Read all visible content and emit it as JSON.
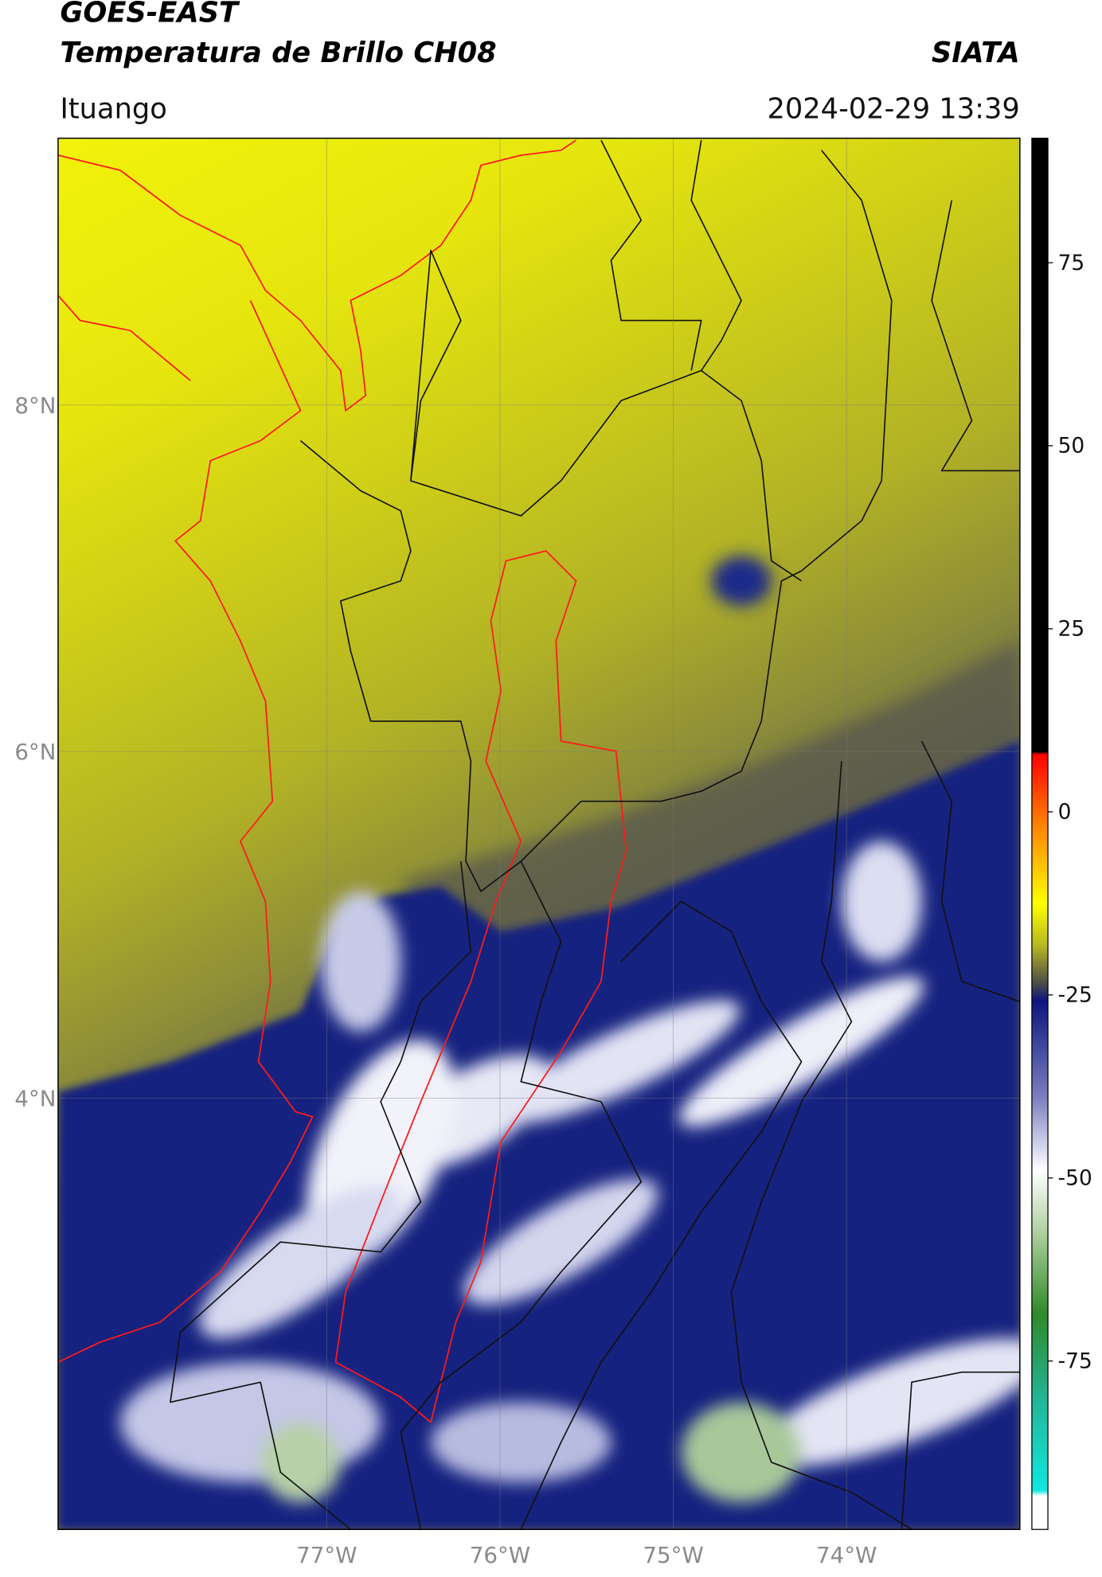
{
  "header": {
    "title": "GOES-EAST",
    "subtitle": "Temperatura de Brillo CH08",
    "brand": "SIATA",
    "location": "Ituango",
    "datetime": "2024-02-29 13:39"
  },
  "map": {
    "xlim": [
      -78.55,
      -73.0
    ],
    "ylim": [
      1.51,
      9.54
    ],
    "xticks": [
      {
        "value": -77,
        "label": "77°W"
      },
      {
        "value": -76,
        "label": "76°W"
      },
      {
        "value": -75,
        "label": "75°W"
      },
      {
        "value": -74,
        "label": "74°W"
      }
    ],
    "yticks": [
      {
        "value": 8,
        "label": "8°N"
      },
      {
        "value": 6,
        "label": "6°N"
      },
      {
        "value": 4,
        "label": "4°N"
      }
    ],
    "grid": true
  },
  "colorbar": {
    "lim": [
      -98,
      92
    ],
    "ticks": [
      75,
      50,
      25,
      0,
      -25,
      -50,
      -75
    ]
  }
}
